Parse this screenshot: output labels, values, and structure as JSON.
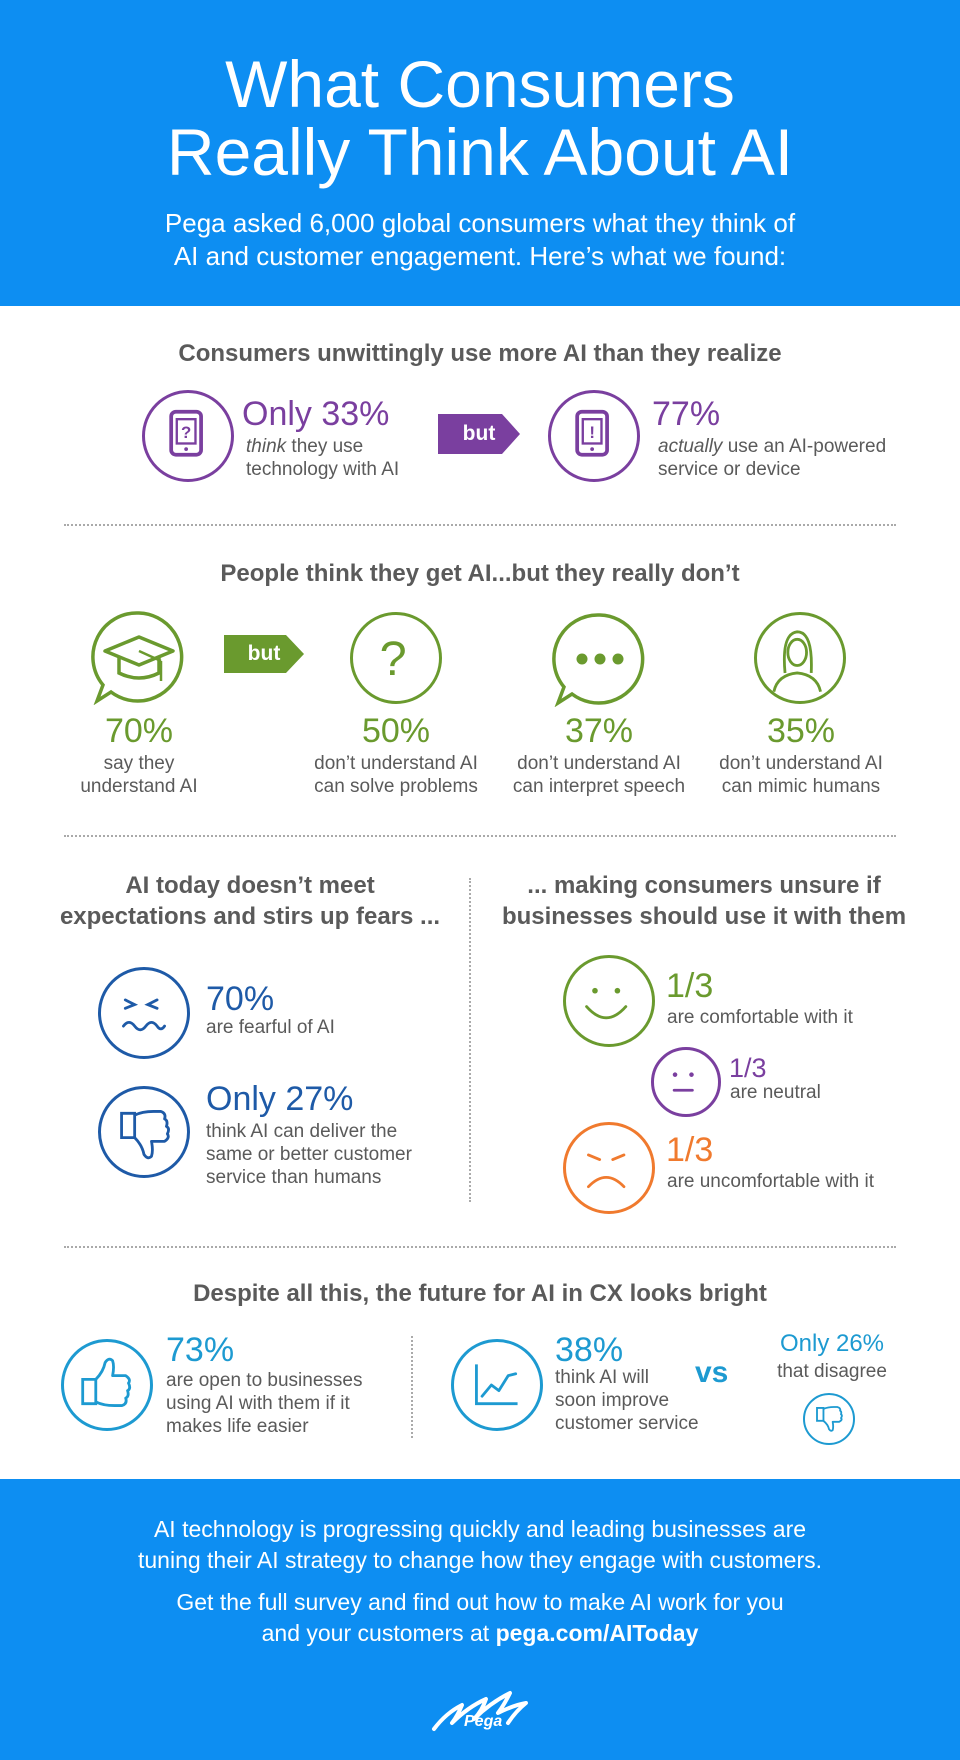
{
  "header": {
    "title_line1": "What Consumers",
    "title_line2": "Really Think About AI",
    "subtitle_line1": "Pega asked 6,000 global consumers what they think of",
    "subtitle_line2": "AI and customer engagement. Here’s what we found:"
  },
  "section1": {
    "title": "Consumers unwittingly use more AI than they realize",
    "left_stat": "Only 33%",
    "left_emph": "think",
    "left_line1": " they use",
    "left_line2": "technology with AI",
    "but": "but",
    "right_stat": "77%",
    "right_emph": "actually",
    "right_line1": " use an AI-powered",
    "right_line2": "service or device"
  },
  "section2": {
    "title": "People think they get AI...but they really don’t",
    "but": "but",
    "stats": [
      {
        "value": "70%",
        "line1": "say they",
        "line2": "understand AI"
      },
      {
        "value": "50%",
        "line1": "don’t understand AI",
        "line2": "can solve problems"
      },
      {
        "value": "37%",
        "line1": "don’t understand AI",
        "line2": "can interpret speech"
      },
      {
        "value": "35%",
        "line1": "don’t understand AI",
        "line2": "can mimic humans"
      }
    ]
  },
  "section3": {
    "left_title_line1": "AI today doesn’t meet",
    "left_title_line2": "expectations and stirs up fears ...",
    "fear_stat": "70%",
    "fear_text": "are fearful of AI",
    "deliver_stat": "Only 27%",
    "deliver_line1": "think AI can deliver the",
    "deliver_line2": "same or better customer",
    "deliver_line3": "service than humans",
    "right_title_line1": "... making consumers unsure if",
    "right_title_line2": "businesses should use it with them",
    "comfortable_stat": "1/3",
    "comfortable_text": "are comfortable with it",
    "neutral_stat": "1/3",
    "neutral_text": "are neutral",
    "uncomfortable_stat": "1/3",
    "uncomfortable_text": "are uncomfortable with it"
  },
  "section4": {
    "title": "Despite all this, the future for AI in CX looks bright",
    "open_stat": "73%",
    "open_line1": "are open to businesses",
    "open_line2": "using AI with them if it",
    "open_line3": "makes life easier",
    "improve_stat": "38%",
    "improve_line1": "think AI will",
    "improve_line2": "soon improve",
    "improve_line3": "customer service",
    "vs": "vs",
    "disagree_stat": "Only 26%",
    "disagree_text": "that disagree"
  },
  "footer": {
    "line1": "AI technology is progressing quickly and leading businesses are",
    "line2": "tuning their AI strategy to change how they engage with customers.",
    "line3": "Get the full survey and find out how to make AI work for you",
    "line4_prefix": "and your customers at ",
    "link": "pega.com/AIToday",
    "logo_text": "Pega"
  },
  "colors": {
    "blue": "#0d8ef2",
    "purple": "#7a3f9f",
    "green": "#6a9a2e",
    "navy": "#1e5aa7",
    "teal": "#1d9ad1",
    "orange": "#f07a2e"
  }
}
